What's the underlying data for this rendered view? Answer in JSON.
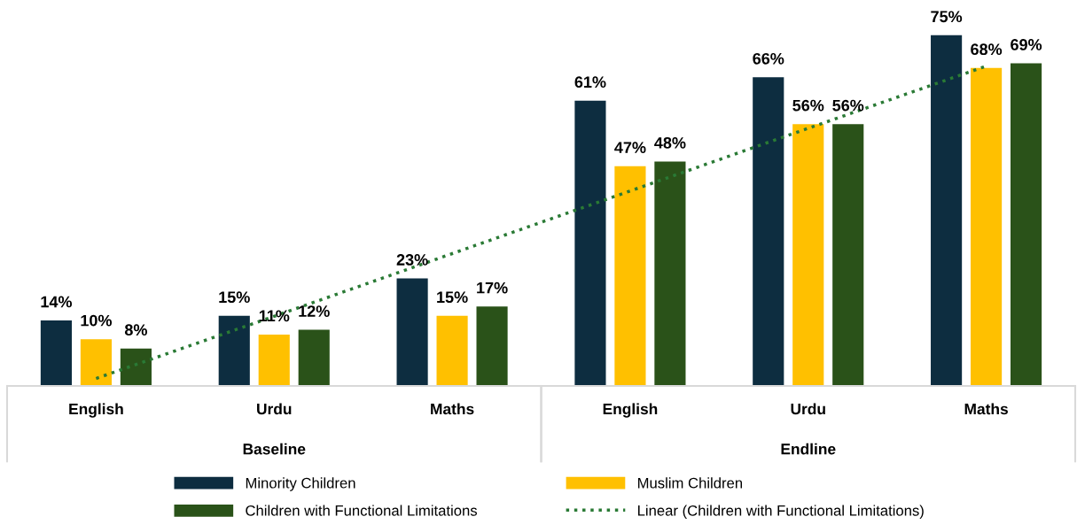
{
  "chart_data": {
    "type": "bar",
    "categories": [
      "English",
      "Urdu",
      "Maths",
      "English",
      "Urdu",
      "Maths"
    ],
    "series": [
      {
        "name": "Minority Children",
        "color": "#0d2d40",
        "values": [
          14,
          15,
          23,
          61,
          66,
          75
        ],
        "value_labels": [
          "14%",
          "15%",
          "23%",
          "61%",
          "66%",
          "75%"
        ]
      },
      {
        "name": "Muslim Children",
        "color": "#ffc000",
        "values": [
          10,
          11,
          15,
          47,
          56,
          68
        ],
        "value_labels": [
          "10%",
          "11%",
          "15%",
          "47%",
          "56%",
          "68%"
        ]
      },
      {
        "name": "Children with Functional Limitations",
        "color": "#2a5219",
        "values": [
          8,
          12,
          17,
          48,
          56,
          69
        ],
        "value_labels": [
          "8%",
          "12%",
          "17%",
          "48%",
          "56%",
          "69%"
        ]
      },
      {
        "name": "Linear (Children with Functional Limitations)",
        "type": "line",
        "color": "#2a7a35",
        "line_style": "dotted",
        "values": [
          1.6,
          14.9,
          28.3,
          41.7,
          55.1,
          68.4
        ]
      }
    ],
    "annotations": [
      "Baseline",
      "Endline"
    ],
    "legend": "bottom"
  }
}
